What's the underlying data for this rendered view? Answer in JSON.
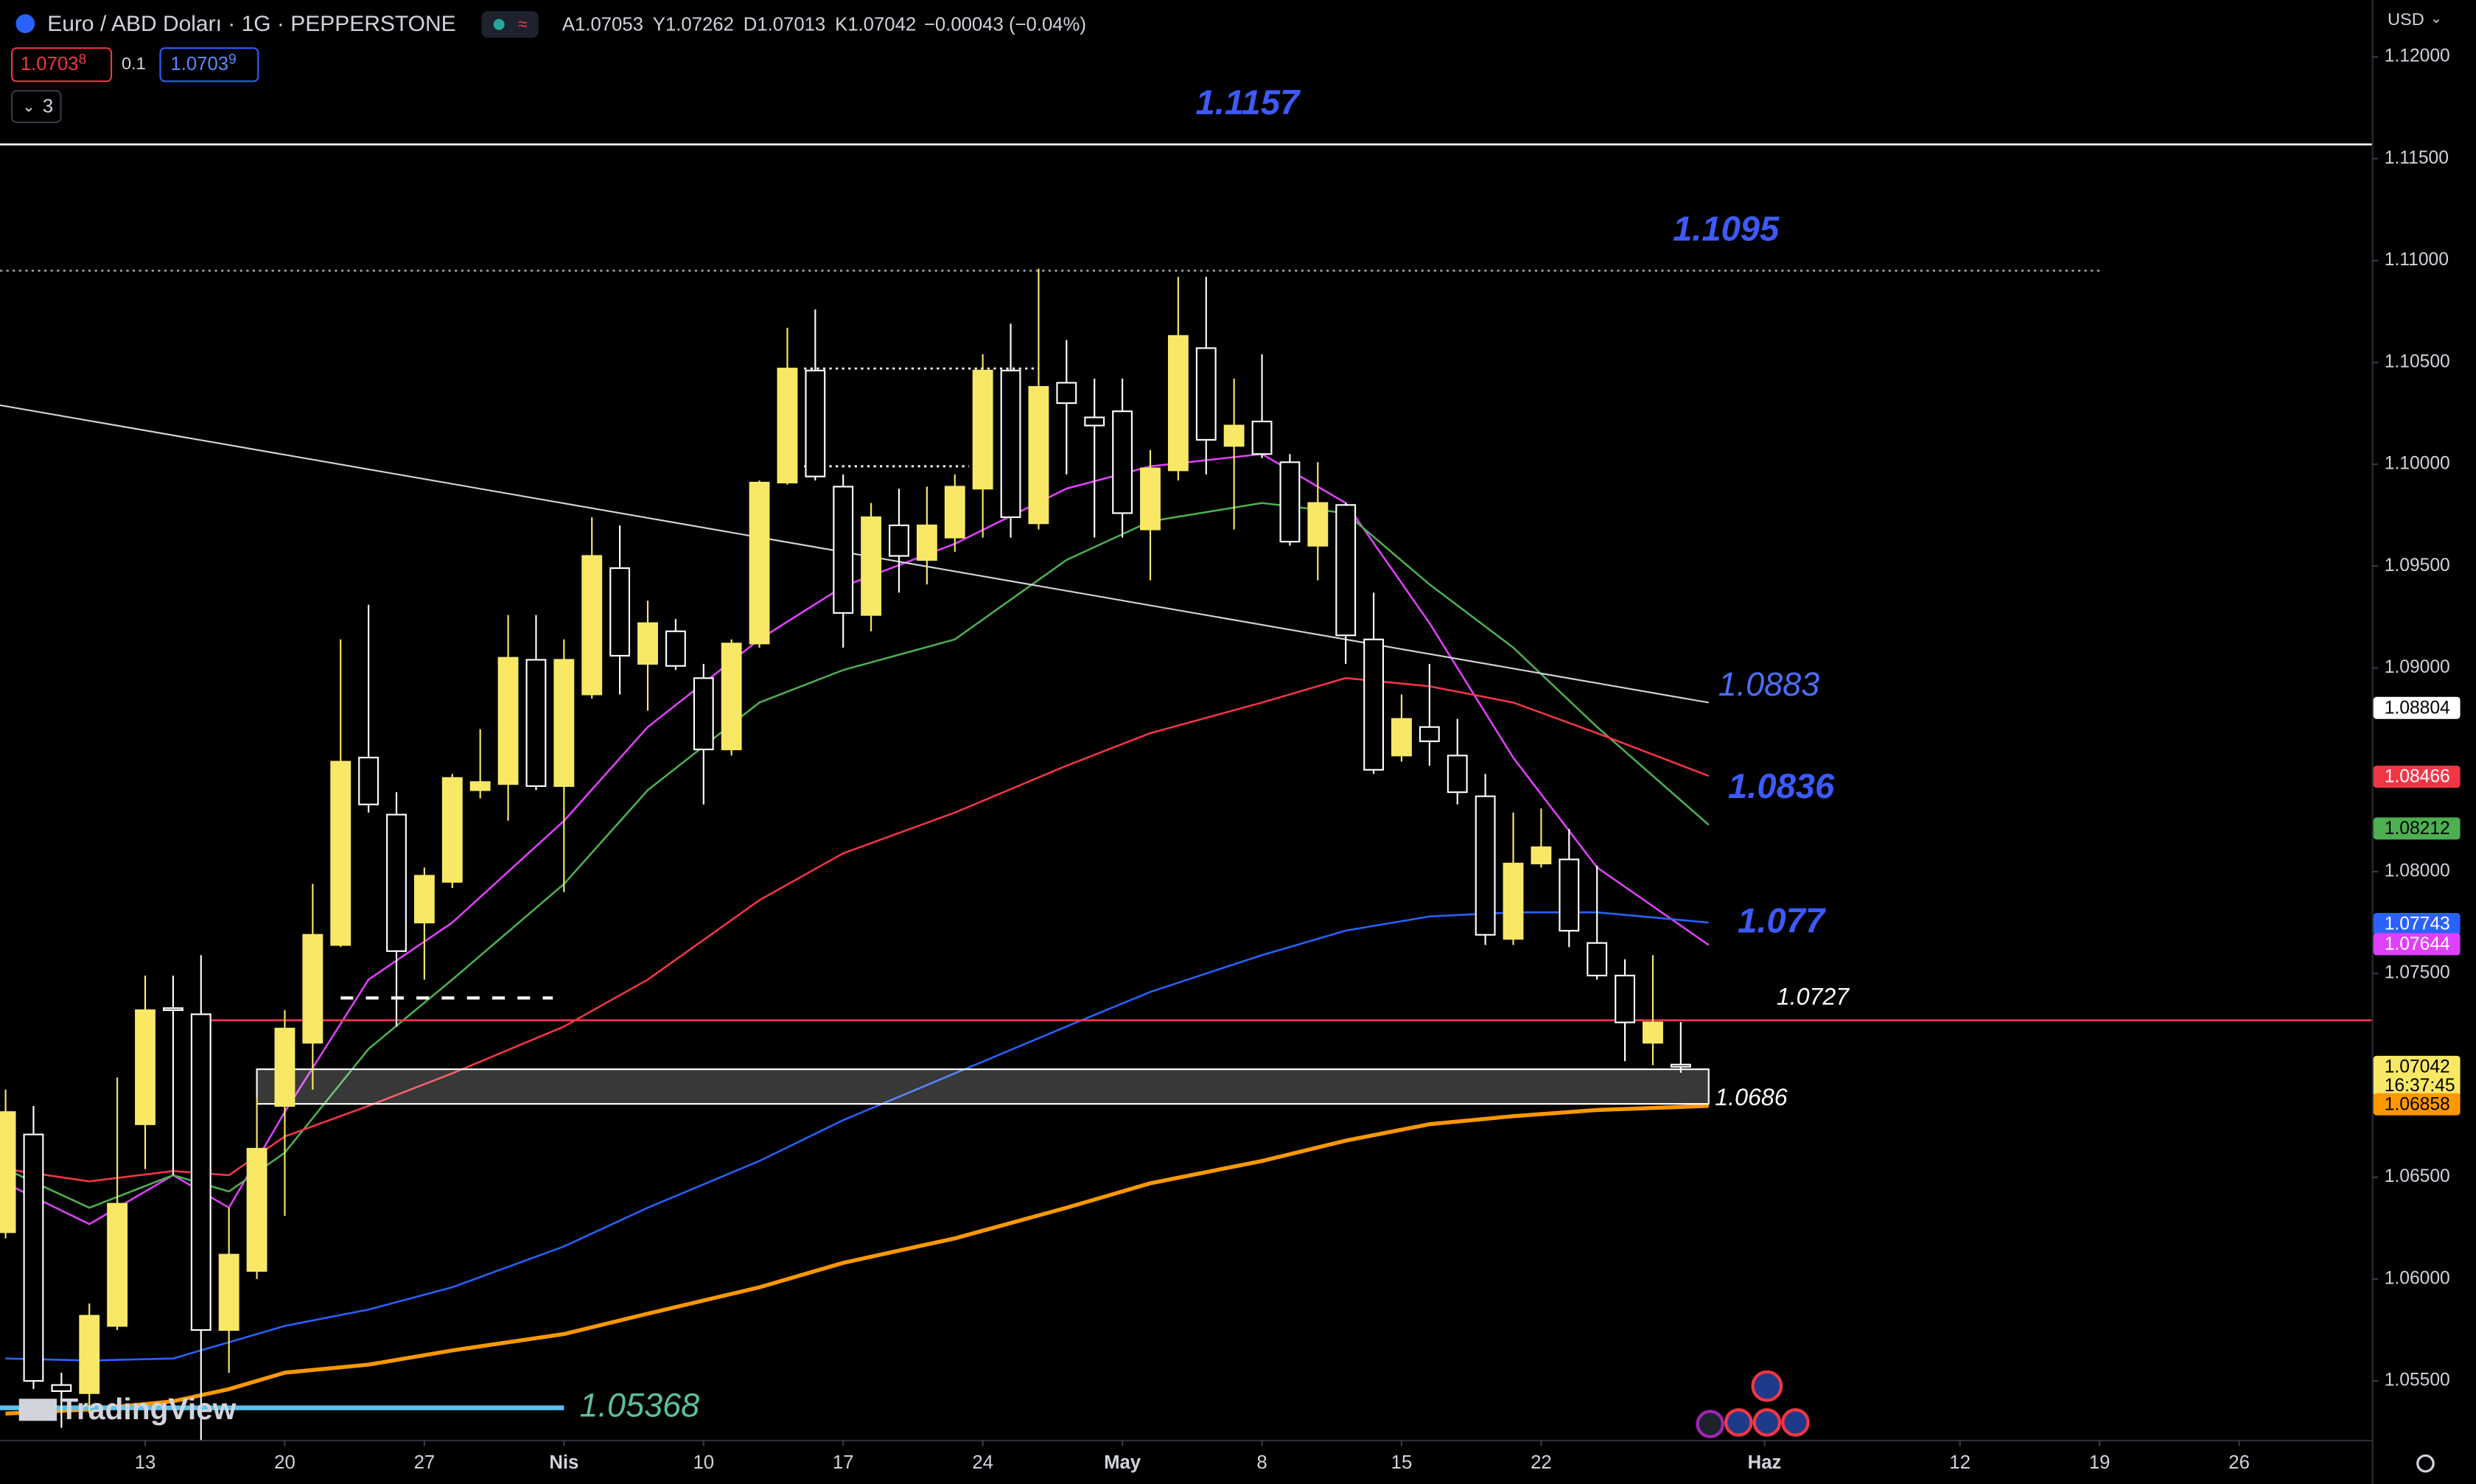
{
  "header": {
    "symbol": "Euro / ABD Doları · 1G · PEPPERSTONE",
    "ohlc_letters": [
      "A",
      "Y",
      "D",
      "K"
    ],
    "change": "−0.00043 (−0.04%)",
    "sell": "1.0703",
    "sell_sup": "8",
    "spread": "0.1",
    "buy": "1.0703",
    "buy_sup": "9",
    "indicators": "3",
    "currency": "USD",
    "logo": "TradingView"
  },
  "chart_data": {
    "type": "candlestick",
    "x": [
      0,
      1,
      2,
      3,
      4,
      5,
      6,
      7,
      8,
      9,
      10,
      11,
      12,
      13,
      14,
      15,
      16,
      17,
      18,
      19,
      20,
      21,
      22,
      23,
      24,
      25,
      26,
      27,
      28,
      29,
      30,
      31,
      32,
      33,
      34,
      35,
      36,
      37,
      38,
      39,
      40,
      41,
      42,
      43,
      44,
      45,
      46,
      47,
      48,
      49,
      50,
      51,
      52,
      53,
      54,
      55,
      56,
      57,
      58,
      59,
      60
    ],
    "open": [
      1.0623,
      1.0671,
      1.0548,
      1.0544,
      1.0577,
      1.0676,
      1.0733,
      1.073,
      1.0575,
      1.0604,
      1.0685,
      1.0716,
      1.0764,
      1.0856,
      1.0828,
      1.0775,
      1.0795,
      1.084,
      1.0843,
      1.0904,
      1.0842,
      1.0887,
      1.0949,
      1.0902,
      1.0918,
      1.0895,
      1.086,
      1.0912,
      1.0991,
      1.1046,
      1.0989,
      1.0926,
      1.097,
      1.0953,
      1.0964,
      1.0988,
      1.1046,
      1.0971,
      1.104,
      1.1023,
      1.1026,
      1.0968,
      1.0997,
      1.1057,
      1.1009,
      1.1021,
      1.1001,
      1.096,
      1.098,
      1.0914,
      1.0857,
      1.0871,
      1.0857,
      1.0837,
      1.0767,
      1.0804,
      1.0806,
      1.0765,
      1.0749,
      1.0716,
      1.07053
    ],
    "high": [
      1.0693,
      1.0685,
      1.0554,
      1.0588,
      1.0699,
      1.0749,
      1.0749,
      1.0759,
      1.0635,
      1.0689,
      1.0732,
      1.0794,
      1.0914,
      1.0931,
      1.0839,
      1.0802,
      1.0848,
      1.087,
      1.0926,
      1.0926,
      1.0914,
      1.0974,
      1.097,
      1.0933,
      1.0924,
      1.0902,
      1.0914,
      1.0992,
      1.1067,
      1.1076,
      1.0995,
      1.0981,
      1.0988,
      1.0989,
      1.0995,
      1.1054,
      1.1069,
      1.1096,
      1.1061,
      1.1042,
      1.1042,
      1.1007,
      1.1092,
      1.1092,
      1.1042,
      1.1054,
      1.1005,
      1.1001,
      1.0981,
      1.0937,
      1.0887,
      1.0902,
      1.0875,
      1.0848,
      1.0829,
      1.0831,
      1.0821,
      1.0803,
      1.0757,
      1.0759,
      1.07262
    ],
    "low": [
      1.062,
      1.0546,
      1.0527,
      1.0534,
      1.0575,
      1.0654,
      1.0651,
      1.0521,
      1.0554,
      1.06,
      1.0631,
      1.0693,
      1.0763,
      1.0829,
      1.0724,
      1.0747,
      1.0792,
      1.0836,
      1.0825,
      1.084,
      1.079,
      1.0885,
      1.0887,
      1.0879,
      1.0899,
      1.0833,
      1.0857,
      1.091,
      1.099,
      1.0992,
      1.091,
      1.0918,
      1.0937,
      1.0941,
      1.0957,
      1.0964,
      1.0964,
      1.0968,
      1.0995,
      1.0964,
      1.0964,
      1.0943,
      1.0992,
      1.0995,
      1.0968,
      1.1003,
      1.096,
      1.0943,
      1.0902,
      1.0848,
      1.0854,
      1.0852,
      1.0833,
      1.0764,
      1.0764,
      1.0802,
      1.0763,
      1.0747,
      1.0707,
      1.0705,
      1.07013
    ],
    "close": [
      1.0682,
      1.055,
      1.0545,
      1.0582,
      1.0637,
      1.0732,
      1.0732,
      1.0575,
      1.0612,
      1.0664,
      1.0723,
      1.0769,
      1.0854,
      1.0833,
      1.0761,
      1.0798,
      1.0846,
      1.0844,
      1.0905,
      1.0842,
      1.0904,
      1.0955,
      1.0906,
      1.0922,
      1.0901,
      1.086,
      1.0912,
      1.0991,
      1.1047,
      1.0994,
      1.0927,
      1.0974,
      1.0955,
      1.097,
      1.0989,
      1.1046,
      1.0974,
      1.1038,
      1.103,
      1.1019,
      1.0976,
      1.0998,
      1.1063,
      1.1012,
      1.1019,
      1.1005,
      1.0962,
      1.0981,
      1.0916,
      1.085,
      1.0875,
      1.0864,
      1.0839,
      1.0769,
      1.0804,
      1.0812,
      1.0771,
      1.0749,
      1.0726,
      1.0726,
      1.07042
    ],
    "up_color": "#f9e866",
    "down_color": "#ffffff",
    "xlim": [
      -0.2,
      84.75
    ],
    "ylim": [
      1.05211,
      1.12279
    ],
    "xticks": [
      {
        "value": 5,
        "label": "13"
      },
      {
        "value": 10,
        "label": "20"
      },
      {
        "value": 15,
        "label": "27"
      },
      {
        "value": 20,
        "label": "Nis"
      },
      {
        "value": 25,
        "label": "10"
      },
      {
        "value": 30,
        "label": "17"
      },
      {
        "value": 35,
        "label": "24"
      },
      {
        "value": 40,
        "label": "May"
      },
      {
        "value": 45,
        "label": "8"
      },
      {
        "value": 50,
        "label": "15"
      },
      {
        "value": 55,
        "label": "22"
      },
      {
        "value": 63,
        "label": "Haz"
      },
      {
        "value": 70,
        "label": "12"
      },
      {
        "value": 75,
        "label": "19"
      },
      {
        "value": 80,
        "label": "26"
      }
    ],
    "yticks": [
      {
        "value": 1.055,
        "label": "1.05500"
      },
      {
        "value": 1.06,
        "label": "1.06000"
      },
      {
        "value": 1.065,
        "label": "1.06500"
      },
      {
        "value": 1.075,
        "label": "1.07500"
      },
      {
        "value": 1.08,
        "label": "1.08000"
      },
      {
        "value": 1.09,
        "label": "1.09000"
      },
      {
        "value": 1.095,
        "label": "1.09500"
      },
      {
        "value": 1.1,
        "label": "1.10000"
      },
      {
        "value": 1.105,
        "label": "1.10500"
      },
      {
        "value": 1.11,
        "label": "1.11000"
      },
      {
        "value": 1.115,
        "label": "1.11500"
      },
      {
        "value": 1.12,
        "label": "1.12000"
      }
    ],
    "ma_x": [
      0,
      3,
      6,
      8,
      10,
      13,
      16,
      20,
      23,
      27,
      30,
      34,
      38,
      41,
      45,
      48,
      51,
      54,
      57,
      61
    ],
    "moving_averages": [
      {
        "color": "#e040fb",
        "values": [
          1.0647,
          1.0627,
          1.0651,
          1.0635,
          1.0682,
          1.0747,
          1.0775,
          1.0825,
          1.0871,
          1.0914,
          1.094,
          1.0961,
          1.0988,
          1.0999,
          1.1005,
          1.0981,
          1.0922,
          1.0856,
          1.0802,
          1.0764
        ]
      },
      {
        "color": "#4caf50",
        "values": [
          1.0654,
          1.0635,
          1.0651,
          1.0643,
          1.0662,
          1.0713,
          1.0747,
          1.0794,
          1.084,
          1.0883,
          1.0899,
          1.0914,
          1.0953,
          1.0972,
          1.0981,
          1.0976,
          1.0941,
          1.091,
          1.0871,
          1.0823
        ]
      },
      {
        "color": "#f23645",
        "values": [
          1.0654,
          1.0648,
          1.0653,
          1.0651,
          1.067,
          1.0685,
          1.0701,
          1.0724,
          1.0747,
          1.0786,
          1.0809,
          1.0829,
          1.0852,
          1.0868,
          1.0883,
          1.0895,
          1.0891,
          1.0883,
          1.0868,
          1.0847
        ]
      },
      {
        "color": "#2962ff",
        "values": [
          1.0561,
          1.056,
          1.0561,
          1.0569,
          1.0577,
          1.0585,
          1.0596,
          1.0616,
          1.0635,
          1.0658,
          1.0678,
          1.0701,
          1.0724,
          1.0741,
          1.0759,
          1.0771,
          1.0778,
          1.078,
          1.078,
          1.0775
        ]
      },
      {
        "color": "#ff9800",
        "values": [
          1.0534,
          1.0536,
          1.054,
          1.0546,
          1.0554,
          1.0558,
          1.0565,
          1.0573,
          1.0583,
          1.0596,
          1.0608,
          1.062,
          1.0635,
          1.0647,
          1.0658,
          1.0668,
          1.0676,
          1.068,
          1.0683,
          1.0685
        ]
      }
    ],
    "trendline": {
      "x": [
        -0.2,
        61
      ],
      "values": [
        1.1029,
        1.0883
      ],
      "label": "1.0883"
    },
    "levels": [
      {
        "value": 1.1157,
        "label": "1.1157",
        "color": "#ffffff",
        "style": "solid",
        "x_range": [
          -0.2,
          84.75
        ]
      },
      {
        "value": 1.1095,
        "label": "1.1095",
        "color": "#9598a1",
        "style": "dotted",
        "x_range": [
          -0.2,
          75
        ]
      },
      {
        "value": 1.0727,
        "label": "1.0727",
        "color": "#f23645",
        "style": "solid",
        "x_range": [
          7,
          84.75
        ]
      },
      {
        "value": 1.05368,
        "label": "1.05368",
        "color": "#5bc0eb",
        "style": "solid",
        "x_range": [
          -0.2,
          20
        ]
      },
      {
        "value": 1.0738,
        "color": "#ffffff",
        "style": "dashed",
        "x_range": [
          12,
          19.6
        ]
      },
      {
        "value": 1.1047,
        "color": "#ffffff",
        "style": "dotted",
        "x_range": [
          28.6,
          37
        ]
      },
      {
        "value": 1.0999,
        "color": "#ffffff",
        "style": "dotted",
        "x_range": [
          28.6,
          34.5
        ]
      }
    ],
    "zone": {
      "top": 1.0703,
      "bottom": 1.0686,
      "label": "1.0686",
      "x_range": [
        9,
        61
      ]
    },
    "annotations": [
      {
        "label": "1.0836",
        "value": 1.0836
      },
      {
        "label": "1.077",
        "value": 1.077
      }
    ],
    "price_tags": [
      {
        "value": 1.08804,
        "color": "#ffffff",
        "text_color": "#000000"
      },
      {
        "value": 1.08466,
        "color": "#f23645",
        "text_color": "#ffffff"
      },
      {
        "value": 1.08212,
        "color": "#4caf50",
        "text_color": "#000000"
      },
      {
        "value": 1.07743,
        "color": "#2962ff",
        "text_color": "#ffffff"
      },
      {
        "value": 1.07644,
        "color": "#e040fb",
        "text_color": "#ffffff"
      },
      {
        "value": 1.07042,
        "color": "#f9e866",
        "text_color": "#000000",
        "time": "16:37:45"
      },
      {
        "value": 1.06858,
        "color": "#ff9800",
        "text_color": "#000000"
      }
    ]
  }
}
